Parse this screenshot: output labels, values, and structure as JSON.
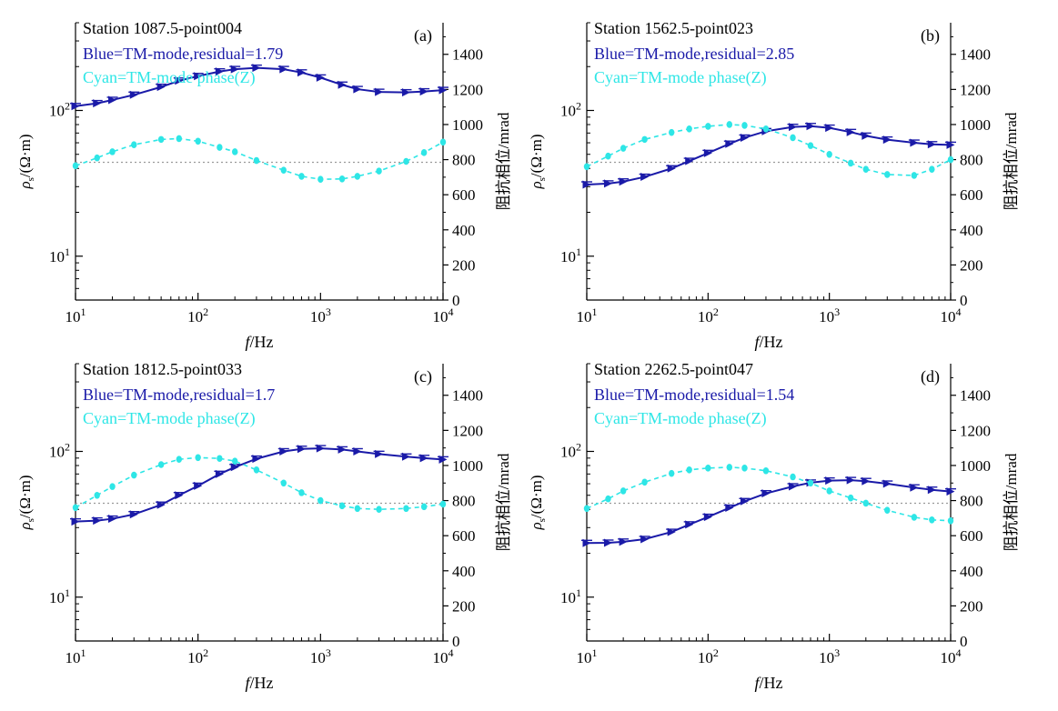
{
  "figure": {
    "xlabel": "f/Hz",
    "ylabel_left": "ρs/(Ω·m)",
    "ylabel_right": "阻抗相位/mrad",
    "x_ticks": [
      "10^1",
      "10^2",
      "10^3",
      "10^4"
    ],
    "y_left_ticks": [
      "10^1",
      "10^2"
    ],
    "y_right_ticks": [
      "0",
      "200",
      "400",
      "600",
      "800",
      "1000",
      "1200",
      "1400"
    ],
    "colors": {
      "blue": "#1a1aa8",
      "cyan": "#2ee6e6",
      "reference_line": "#9a9a9a",
      "axes": "#000000"
    }
  },
  "chart_data": [
    {
      "type": "line",
      "panel": "(a)",
      "title": "Station 1087.5-point004",
      "legend": [
        "Blue=TM-mode,residual=1.79",
        "Cyan=TM-mode phase(Z)"
      ],
      "xscale": "log",
      "xlim": [
        10,
        10000
      ],
      "ylim_left": [
        5,
        400
      ],
      "yscale_left": "log",
      "ylim_right": [
        0,
        1580
      ],
      "reference_phase": 785,
      "series": [
        {
          "name": "TM-mode",
          "axis": "left",
          "x": [
            10,
            15,
            20,
            30,
            50,
            70,
            100,
            150,
            200,
            300,
            500,
            700,
            1000,
            1500,
            2000,
            3000,
            5000,
            7000,
            10000
          ],
          "values": [
            107,
            112,
            118,
            128,
            145,
            160,
            172,
            185,
            192,
            196,
            192,
            182,
            168,
            150,
            140,
            134,
            133,
            135,
            138
          ]
        },
        {
          "name": "TM-mode phase(Z)",
          "axis": "right",
          "x": [
            10,
            15,
            20,
            30,
            50,
            70,
            100,
            150,
            200,
            300,
            500,
            700,
            1000,
            1500,
            2000,
            3000,
            5000,
            7000,
            10000
          ],
          "values": [
            765,
            810,
            845,
            885,
            915,
            920,
            905,
            870,
            845,
            795,
            740,
            705,
            688,
            690,
            705,
            735,
            790,
            840,
            900
          ]
        }
      ]
    },
    {
      "type": "line",
      "panel": "(b)",
      "title": "Station 1562.5-point023",
      "legend": [
        "Blue=TM-mode,residual=2.85",
        "Cyan=TM-mode phase(Z)"
      ],
      "xscale": "log",
      "xlim": [
        10,
        10000
      ],
      "ylim_left": [
        5,
        400
      ],
      "yscale_left": "log",
      "ylim_right": [
        0,
        1580
      ],
      "reference_phase": 785,
      "series": [
        {
          "name": "TM-mode",
          "axis": "left",
          "x": [
            10,
            15,
            20,
            30,
            50,
            70,
            100,
            150,
            200,
            300,
            500,
            700,
            1000,
            1500,
            2000,
            3000,
            5000,
            7000,
            10000
          ],
          "values": [
            31,
            31.5,
            32.5,
            35,
            40,
            45,
            51,
            59,
            65,
            72,
            77,
            78,
            76,
            71,
            67,
            63,
            60,
            58.5,
            58
          ]
        },
        {
          "name": "TM-mode phase(Z)",
          "axis": "right",
          "x": [
            10,
            15,
            20,
            30,
            50,
            70,
            100,
            150,
            200,
            300,
            500,
            700,
            1000,
            1500,
            2000,
            3000,
            5000,
            7000,
            10000
          ],
          "values": [
            760,
            820,
            865,
            915,
            955,
            975,
            990,
            1000,
            995,
            975,
            925,
            880,
            830,
            780,
            745,
            715,
            710,
            745,
            800
          ]
        }
      ]
    },
    {
      "type": "line",
      "panel": "(c)",
      "title": "Station 1812.5-point033",
      "legend": [
        "Blue=TM-mode,residual=1.7",
        "Cyan=TM-mode phase(Z)"
      ],
      "xscale": "log",
      "xlim": [
        10,
        10000
      ],
      "ylim_left": [
        5,
        400
      ],
      "yscale_left": "log",
      "ylim_right": [
        0,
        1580
      ],
      "reference_phase": 785,
      "series": [
        {
          "name": "TM-mode",
          "axis": "left",
          "x": [
            10,
            15,
            20,
            30,
            50,
            70,
            100,
            150,
            200,
            300,
            500,
            700,
            1000,
            1500,
            2000,
            3000,
            5000,
            7000,
            10000
          ],
          "values": [
            33,
            33.5,
            34.5,
            37,
            43,
            50,
            58,
            70,
            78,
            89,
            100,
            104,
            105,
            103,
            100,
            96,
            92,
            90,
            88
          ]
        },
        {
          "name": "TM-mode phase(Z)",
          "axis": "right",
          "x": [
            10,
            15,
            20,
            30,
            50,
            70,
            100,
            150,
            200,
            300,
            500,
            700,
            1000,
            1500,
            2000,
            3000,
            5000,
            7000,
            10000
          ],
          "values": [
            760,
            830,
            880,
            945,
            1005,
            1035,
            1045,
            1040,
            1025,
            975,
            900,
            845,
            800,
            770,
            755,
            750,
            755,
            765,
            780
          ]
        }
      ]
    },
    {
      "type": "line",
      "panel": "(d)",
      "title": "Station 2262.5-point047",
      "legend": [
        "Blue=TM-mode,residual=1.54",
        "Cyan=TM-mode phase(Z)"
      ],
      "xscale": "log",
      "xlim": [
        10,
        10000
      ],
      "ylim_left": [
        5,
        400
      ],
      "yscale_left": "log",
      "ylim_right": [
        0,
        1580
      ],
      "reference_phase": 785,
      "series": [
        {
          "name": "TM-mode",
          "axis": "left",
          "x": [
            10,
            15,
            20,
            30,
            50,
            70,
            100,
            150,
            200,
            300,
            500,
            700,
            1000,
            1500,
            2000,
            3000,
            5000,
            7000,
            10000
          ],
          "values": [
            23.5,
            23.6,
            24,
            25,
            28,
            31.5,
            35.5,
            41,
            45.5,
            51.5,
            57.5,
            61,
            63,
            63.5,
            62.5,
            60,
            56.5,
            54.5,
            53
          ]
        },
        {
          "name": "TM-mode phase(Z)",
          "axis": "right",
          "x": [
            10,
            15,
            20,
            30,
            50,
            70,
            100,
            150,
            200,
            300,
            500,
            700,
            1000,
            1500,
            2000,
            3000,
            5000,
            7000,
            10000
          ],
          "values": [
            755,
            810,
            855,
            905,
            955,
            975,
            985,
            990,
            985,
            970,
            935,
            900,
            855,
            815,
            785,
            745,
            705,
            690,
            685
          ]
        }
      ]
    }
  ]
}
